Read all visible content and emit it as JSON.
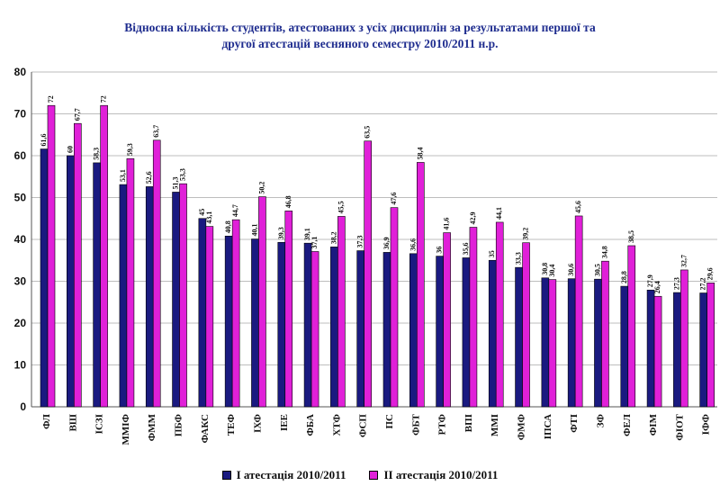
{
  "chart_data": {
    "type": "bar",
    "title": "Відносна кількість студентів, атестованих з усіх дисциплін за результатами першої та другої атестацій весняного семестру 2010/2011 н.р.",
    "title_lines": [
      "Відносна кількість студентів, атестованих з усіх дисциплін за результатами першої та",
      "другої атестацій весняного семестру 2010/2011 н.р."
    ],
    "categories": [
      "ФЛ",
      "ВШ",
      "ІСЗІ",
      "ММІФ",
      "ФММ",
      "ПБФ",
      "ФАКС",
      "ТЕФ",
      "ІХФ",
      "ІЕЕ",
      "ФБА",
      "ХТФ",
      "ФСП",
      "ПС",
      "ФБТ",
      "РТФ",
      "ВПІ",
      "ММІ",
      "ФМФ",
      "ІПСА",
      "ФТІ",
      "ЗФ",
      "ФЕЛ",
      "ФІМ",
      "ФІОТ",
      "ІФФ"
    ],
    "series": [
      {
        "name": "І атестація 2010/2011",
        "color": "#1a1a80",
        "values": [
          61.6,
          60,
          58.3,
          53.1,
          52.6,
          51.3,
          45,
          40.8,
          40.1,
          39.3,
          39.1,
          38.2,
          37.3,
          36.9,
          36.6,
          36,
          35.6,
          35,
          33.3,
          30.8,
          30.6,
          30.5,
          28.8,
          27.9,
          27.3,
          27.2
        ],
        "labels": [
          "61,6",
          "60",
          "58,3",
          "53,1",
          "52,6",
          "51,3",
          "45",
          "40,8",
          "40,1",
          "39,3",
          "39,1",
          "38,2",
          "37,3",
          "36,9",
          "36,6",
          "36",
          "35,6",
          "35",
          "33,3",
          "30,8",
          "30,6",
          "30,5",
          "28,8",
          "27,9",
          "27,3",
          "27,2"
        ]
      },
      {
        "name": "ІІ атестація 2010/2011",
        "color": "#e020d8",
        "values": [
          72,
          67.7,
          72,
          59.3,
          63.7,
          53.3,
          43.1,
          44.7,
          50.2,
          46.8,
          37.1,
          45.5,
          63.5,
          47.6,
          58.4,
          41.6,
          42.9,
          44.1,
          39.2,
          30.4,
          45.6,
          34.8,
          38.5,
          26.4,
          32.7,
          29.6
        ],
        "labels": [
          "72",
          "67,7",
          "72",
          "59,3",
          "63,7",
          "53,3",
          "43,1",
          "44,7",
          "50,2",
          "46,8",
          "37,1",
          "45,5",
          "63,5",
          "47,6",
          "58,4",
          "41,6",
          "42,9",
          "44,1",
          "39,2",
          "30,4",
          "45,6",
          "34,8",
          "38,5",
          "26,4",
          "32,7",
          "29,6"
        ]
      }
    ],
    "ylim": [
      0,
      80
    ],
    "yticks": [
      0,
      10,
      20,
      30,
      40,
      50,
      60,
      70,
      80
    ],
    "grid": true,
    "legend_position": "bottom"
  }
}
